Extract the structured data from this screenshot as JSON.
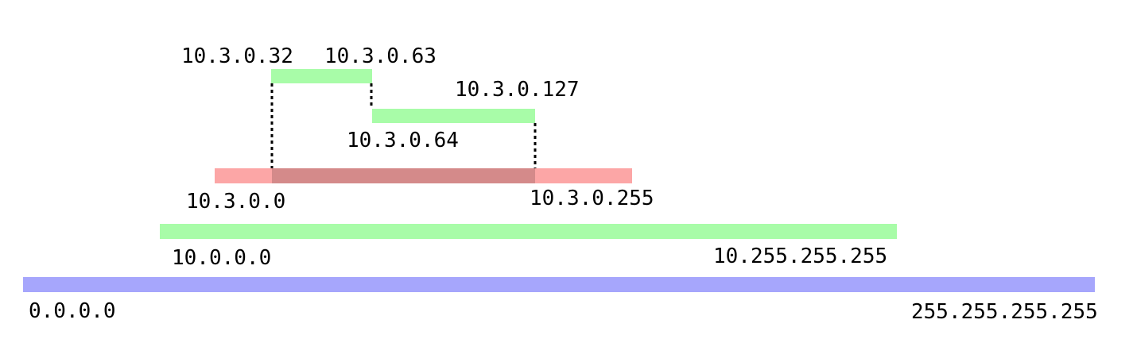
{
  "colors": {
    "green": "#a8fca8",
    "red": "#fca6a6",
    "overlap": "#d48a8a",
    "blue": "#a6a6fc",
    "dotted": "#000000"
  },
  "ranges": {
    "all": {
      "start": "0.0.0.0",
      "end": "255.255.255.255"
    },
    "net_10": {
      "start": "10.0.0.0",
      "end": "10.255.255.255"
    },
    "net_10_3": {
      "start": "10.3.0.0",
      "end": "10.3.0.255"
    },
    "sub_a": {
      "start": "10.3.0.32",
      "end": "10.3.0.63"
    },
    "sub_b": {
      "start": "10.3.0.64",
      "end": "10.3.0.127"
    }
  }
}
